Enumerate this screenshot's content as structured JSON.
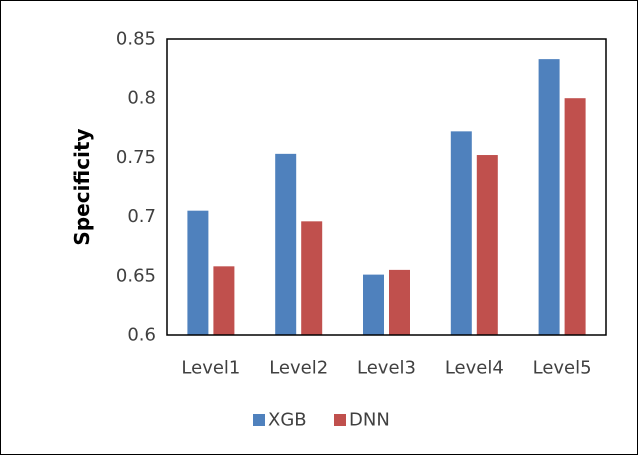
{
  "chart_data": {
    "type": "bar",
    "title": "",
    "xlabel": "",
    "ylabel": "Specificity",
    "categories": [
      "Level1",
      "Level2",
      "Level3",
      "Level4",
      "Level5"
    ],
    "series": [
      {
        "name": "XGB",
        "color": "#4f81bd",
        "values": [
          0.705,
          0.753,
          0.651,
          0.772,
          0.833
        ]
      },
      {
        "name": "DNN",
        "color": "#c0504d",
        "values": [
          0.658,
          0.696,
          0.655,
          0.752,
          0.8
        ]
      }
    ],
    "ylim": [
      0.6,
      0.85
    ],
    "yticks": [
      "0.6",
      "0.65",
      "0.7",
      "0.75",
      "0.8",
      "0.85"
    ],
    "grid": false,
    "legend_position": "bottom"
  }
}
